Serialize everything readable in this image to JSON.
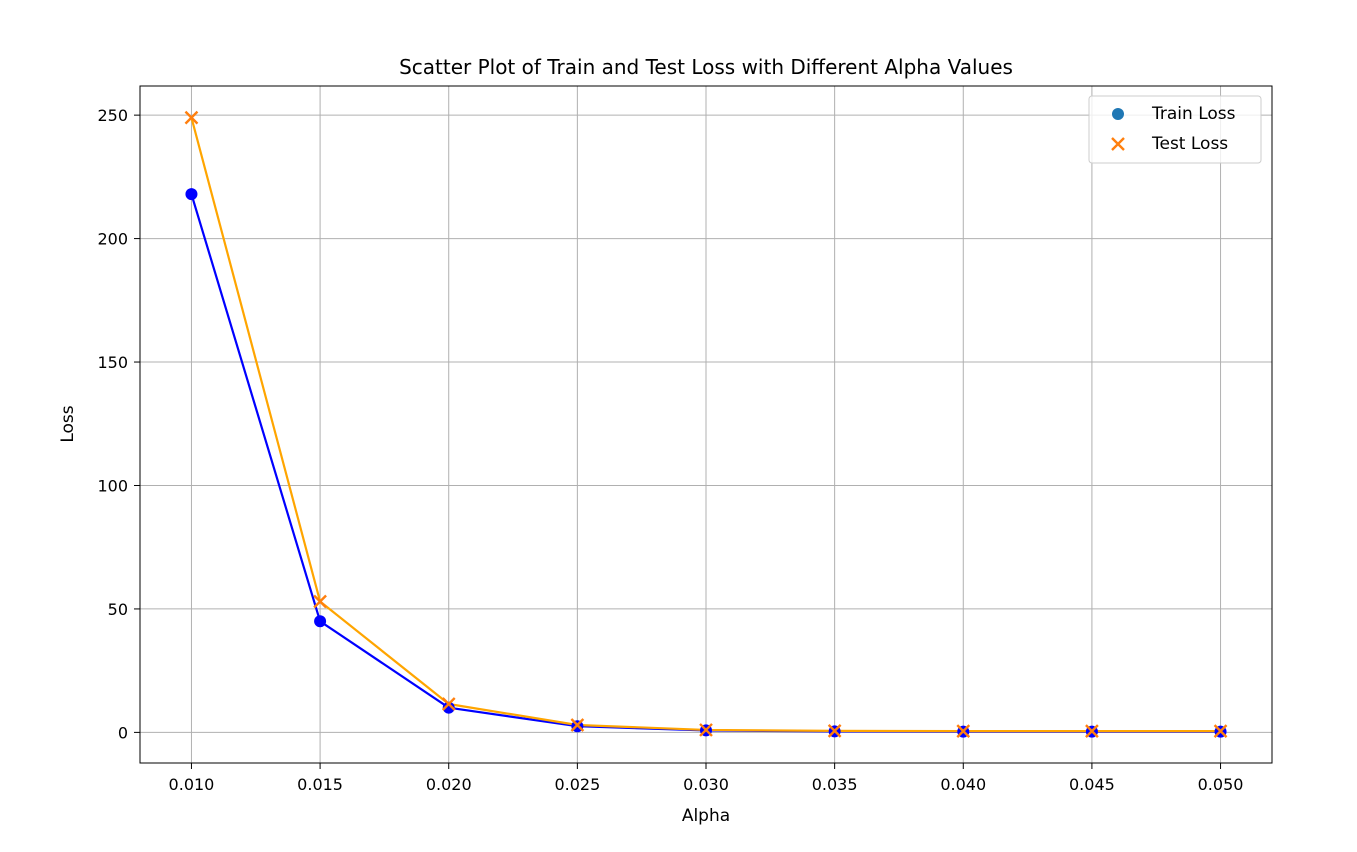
{
  "chart_data": {
    "type": "scatter",
    "title": "Scatter Plot of Train and Test Loss with Different Alpha Values",
    "xlabel": "Alpha",
    "ylabel": "Loss",
    "x": [
      0.01,
      0.015,
      0.02,
      0.025,
      0.03,
      0.035,
      0.04,
      0.045,
      0.05
    ],
    "xlim": [
      0.008,
      0.052
    ],
    "ylim": [
      -12.4,
      261.8
    ],
    "x_ticks": [
      "0.010",
      "0.015",
      "0.020",
      "0.025",
      "0.030",
      "0.035",
      "0.040",
      "0.045",
      "0.050"
    ],
    "x_tick_values": [
      0.01,
      0.015,
      0.02,
      0.025,
      0.03,
      0.035,
      0.04,
      0.045,
      0.05
    ],
    "y_ticks": [
      "0",
      "50",
      "100",
      "150",
      "200",
      "250"
    ],
    "y_tick_values": [
      0,
      50,
      100,
      150,
      200,
      250
    ],
    "grid": true,
    "legend_position": "top-right",
    "series": [
      {
        "name": "Train Loss",
        "marker": "circle",
        "legend_color": "#1f77b4",
        "color": "#0000ff",
        "line_color": "#0000ff",
        "values": [
          218,
          45,
          10,
          2.5,
          0.8,
          0.4,
          0.3,
          0.3,
          0.3
        ]
      },
      {
        "name": "Test Loss",
        "marker": "x",
        "legend_color": "#ff7f0e",
        "color": "#ff7f0e",
        "line_color": "#ffa500",
        "values": [
          249,
          53,
          11.5,
          3.0,
          1.0,
          0.6,
          0.5,
          0.5,
          0.5
        ]
      }
    ]
  }
}
